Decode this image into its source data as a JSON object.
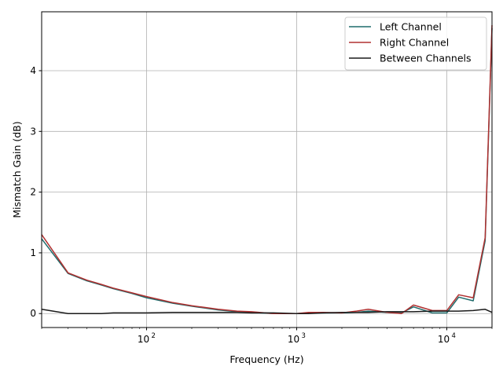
{
  "chart_data": {
    "type": "line",
    "title": "",
    "xlabel": "Frequency (Hz)",
    "ylabel": "Mismatch Gain (dB)",
    "xscale": "log",
    "xlim": [
      20,
      20000
    ],
    "ylim": [
      -0.23,
      4.97
    ],
    "grid": true,
    "legend_placement": "top-right",
    "x_ticks": [
      {
        "v": 100,
        "base": "10",
        "exp": "2"
      },
      {
        "v": 1000,
        "base": "10",
        "exp": "3"
      },
      {
        "v": 10000,
        "base": "10",
        "exp": "4"
      }
    ],
    "y_ticks": [
      0,
      1,
      2,
      3,
      4
    ],
    "x": [
      20,
      30,
      40,
      50,
      60,
      80,
      100,
      150,
      200,
      300,
      400,
      500,
      700,
      1000,
      1200,
      1500,
      2000,
      2500,
      3000,
      4000,
      5000,
      6000,
      8000,
      10000,
      12000,
      15000,
      18000,
      20000
    ],
    "series": [
      {
        "name": "Left Channel",
        "color": "#1f6b6b",
        "values": [
          1.23,
          0.66,
          0.54,
          0.47,
          0.41,
          0.33,
          0.26,
          0.17,
          0.12,
          0.06,
          0.03,
          0.02,
          0.0,
          0.0,
          0.01,
          0.01,
          0.01,
          0.02,
          0.04,
          0.02,
          0.01,
          0.11,
          0.01,
          0.01,
          0.27,
          0.21,
          1.2,
          4.7
        ]
      },
      {
        "name": "Right Channel",
        "color": "#b03030",
        "values": [
          1.3,
          0.67,
          0.55,
          0.48,
          0.42,
          0.34,
          0.28,
          0.18,
          0.13,
          0.07,
          0.04,
          0.03,
          0.0,
          0.0,
          0.02,
          0.02,
          0.01,
          0.04,
          0.07,
          0.02,
          0.0,
          0.14,
          0.05,
          0.05,
          0.31,
          0.26,
          1.25,
          4.75
        ]
      },
      {
        "name": "Between Channels",
        "color": "#1a1a1a",
        "values": [
          0.07,
          0.0,
          0.0,
          0.0,
          0.01,
          0.01,
          0.01,
          0.02,
          0.02,
          0.02,
          0.02,
          0.01,
          0.01,
          0.0,
          0.0,
          0.01,
          0.02,
          0.02,
          0.02,
          0.03,
          0.03,
          0.03,
          0.04,
          0.04,
          0.04,
          0.05,
          0.07,
          0.02
        ]
      }
    ]
  }
}
